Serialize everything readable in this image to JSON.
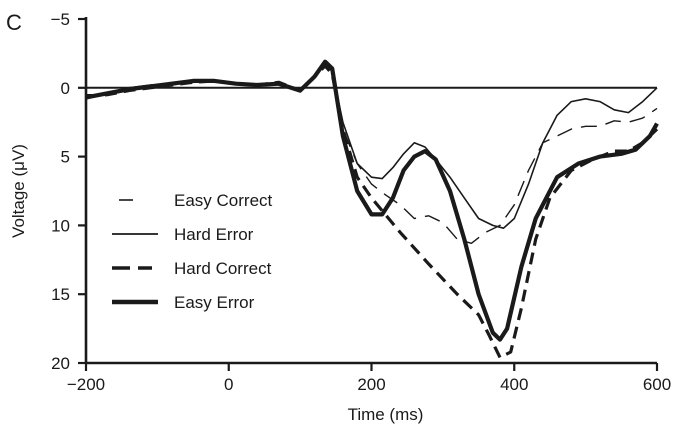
{
  "panel_label": "C",
  "chart_data": {
    "type": "line",
    "title": "",
    "xlabel": "Time (ms)",
    "ylabel": "Voltage (μV)",
    "xlim": [
      -200,
      600
    ],
    "ylim": [
      20,
      -5
    ],
    "y_inverted": true,
    "x_ticks": [
      -200,
      0,
      200,
      400,
      600
    ],
    "x_tick_labels": [
      "−200",
      "0",
      "200",
      "400",
      "600"
    ],
    "y_ticks": [
      -5,
      0,
      5,
      10,
      15,
      20
    ],
    "y_tick_labels": [
      "−5",
      "0",
      "5",
      "10",
      "15",
      "20"
    ],
    "zero_line": true,
    "grid": false,
    "legend_position": "left",
    "series": [
      {
        "name": "Easy Correct",
        "style": "long-dash-thin",
        "x": [
          -200,
          -170,
          -140,
          -110,
          -80,
          -50,
          -20,
          10,
          40,
          70,
          100,
          120,
          135,
          145,
          160,
          180,
          200,
          220,
          240,
          260,
          280,
          300,
          320,
          340,
          360,
          380,
          400,
          420,
          440,
          460,
          480,
          500,
          520,
          540,
          560,
          580,
          600
        ],
        "y": [
          0.5,
          0.5,
          0.2,
          0.0,
          -0.2,
          -0.4,
          -0.5,
          -0.3,
          -0.2,
          -0.3,
          0.2,
          -0.8,
          -1.7,
          -1.3,
          3.0,
          5.5,
          7.0,
          7.8,
          8.5,
          9.5,
          9.3,
          9.8,
          11.0,
          11.3,
          10.5,
          10.0,
          8.5,
          6.0,
          4.0,
          3.5,
          3.0,
          2.8,
          2.8,
          2.4,
          2.5,
          2.2,
          1.5
        ]
      },
      {
        "name": "Hard Error",
        "style": "solid-thin",
        "x": [
          -200,
          -170,
          -140,
          -110,
          -80,
          -50,
          -20,
          10,
          40,
          70,
          100,
          120,
          135,
          145,
          160,
          180,
          200,
          215,
          230,
          245,
          260,
          275,
          290,
          310,
          330,
          350,
          370,
          385,
          400,
          420,
          440,
          460,
          480,
          500,
          520,
          540,
          560,
          580,
          600
        ],
        "y": [
          0.8,
          0.4,
          0.0,
          -0.2,
          -0.3,
          -0.4,
          -0.5,
          -0.3,
          -0.2,
          -0.4,
          0.2,
          -0.8,
          -1.7,
          -1.2,
          2.5,
          5.5,
          6.5,
          6.6,
          5.8,
          4.8,
          4.0,
          4.3,
          5.2,
          6.5,
          8.0,
          9.5,
          10.0,
          10.2,
          9.5,
          7.0,
          4.0,
          2.0,
          1.0,
          0.8,
          1.0,
          1.6,
          1.8,
          1.0,
          0.0
        ]
      },
      {
        "name": "Hard Correct",
        "style": "heavy-dash",
        "x": [
          -200,
          -170,
          -140,
          -110,
          -80,
          -50,
          -20,
          10,
          40,
          70,
          100,
          120,
          135,
          145,
          160,
          180,
          200,
          240,
          280,
          320,
          350,
          365,
          380,
          395,
          410,
          430,
          450,
          480,
          510,
          540,
          560,
          580,
          600
        ],
        "y": [
          0.6,
          0.5,
          0.2,
          0.0,
          -0.2,
          -0.4,
          -0.5,
          -0.3,
          -0.2,
          -0.4,
          0.2,
          -0.8,
          -1.6,
          -1.0,
          3.0,
          6.5,
          8.0,
          10.5,
          12.8,
          15.0,
          16.5,
          18.0,
          19.6,
          19.2,
          16.0,
          11.0,
          8.0,
          6.0,
          5.2,
          4.6,
          4.6,
          4.0,
          3.0
        ]
      },
      {
        "name": "Easy Error",
        "style": "solid-thick",
        "x": [
          -200,
          -170,
          -140,
          -110,
          -80,
          -50,
          -20,
          10,
          40,
          70,
          100,
          120,
          135,
          145,
          160,
          180,
          200,
          215,
          230,
          245,
          260,
          275,
          290,
          310,
          330,
          350,
          370,
          380,
          390,
          410,
          430,
          460,
          490,
          520,
          550,
          570,
          590,
          600
        ],
        "y": [
          0.7,
          0.4,
          0.1,
          -0.1,
          -0.3,
          -0.5,
          -0.5,
          -0.3,
          -0.2,
          -0.3,
          0.2,
          -0.8,
          -1.9,
          -1.4,
          3.5,
          7.5,
          9.2,
          9.2,
          8.0,
          6.0,
          5.0,
          4.6,
          5.2,
          7.5,
          11.0,
          15.0,
          17.8,
          18.3,
          17.5,
          13.0,
          9.5,
          6.5,
          5.5,
          5.0,
          4.8,
          4.5,
          3.5,
          2.6
        ]
      }
    ]
  }
}
